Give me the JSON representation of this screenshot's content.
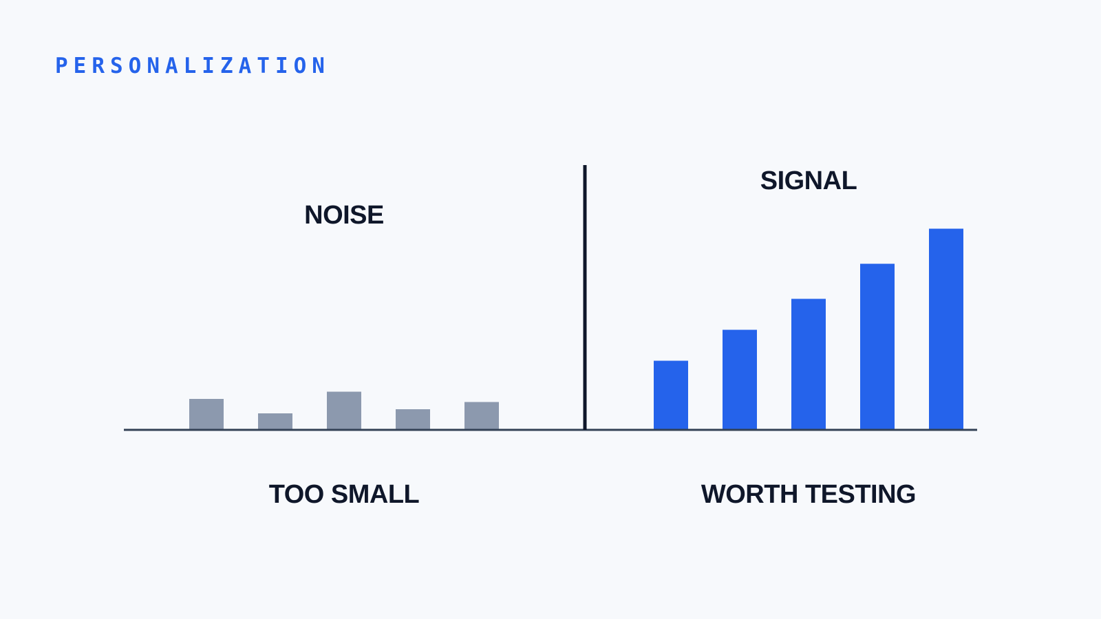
{
  "eyebrow": "PERSONALIZATION",
  "colors": {
    "background": "#f7f9fc",
    "accent": "#2563eb",
    "noise_bar": "#8c99ae",
    "text": "#0f172a",
    "baseline": "#334155"
  },
  "chart_data": {
    "type": "bar",
    "title": "",
    "xlabel": "",
    "ylabel": "",
    "grid": false,
    "ylim": [
      0,
      100
    ],
    "groups": [
      {
        "label": "NOISE",
        "caption": "TOO SMALL",
        "color": "#8c99ae",
        "values": [
          15,
          8,
          18.5,
          10,
          13.5
        ]
      },
      {
        "label": "SIGNAL",
        "caption": "WORTH TESTING",
        "color": "#2563eb",
        "values": [
          33.5,
          48.5,
          63.5,
          80.5,
          97.5
        ]
      }
    ]
  }
}
